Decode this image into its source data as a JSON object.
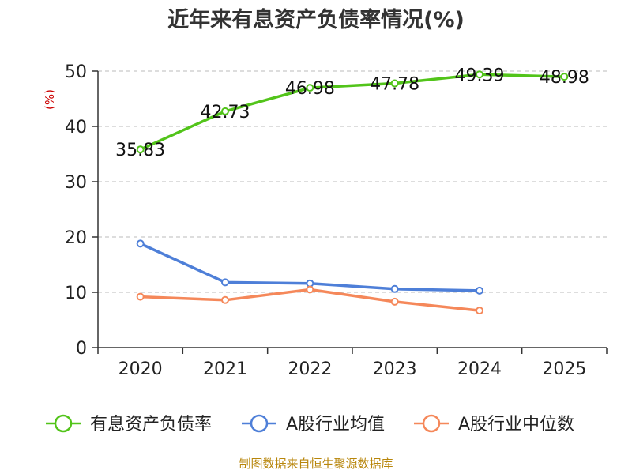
{
  "chart_data": {
    "type": "line",
    "title": "近年来有息资产负债率情况(%)",
    "xlabel": "",
    "ylabel": "(%)",
    "categories": [
      "2020",
      "2021",
      "2022",
      "2023",
      "2024",
      "2025"
    ],
    "ylim": [
      0,
      50
    ],
    "yticks": [
      0,
      10,
      20,
      30,
      40,
      50
    ],
    "grid": true,
    "legend_position": "bottom",
    "series": [
      {
        "name": "有息资产负债率",
        "color": "#52c41a",
        "values": [
          35.83,
          42.73,
          46.98,
          47.78,
          49.39,
          48.98
        ],
        "labels": [
          "35.83",
          "42.73",
          "46.98",
          "47.78",
          "49.39",
          "48.98"
        ]
      },
      {
        "name": "A股行业均值",
        "color": "#4e7fd8",
        "values": [
          18.8,
          11.8,
          11.6,
          10.6,
          10.3,
          null
        ]
      },
      {
        "name": "A股行业中位数",
        "color": "#f5885a",
        "values": [
          9.2,
          8.6,
          10.5,
          8.3,
          6.7,
          null
        ]
      }
    ]
  },
  "source": "制图数据来自恒生聚源数据库"
}
